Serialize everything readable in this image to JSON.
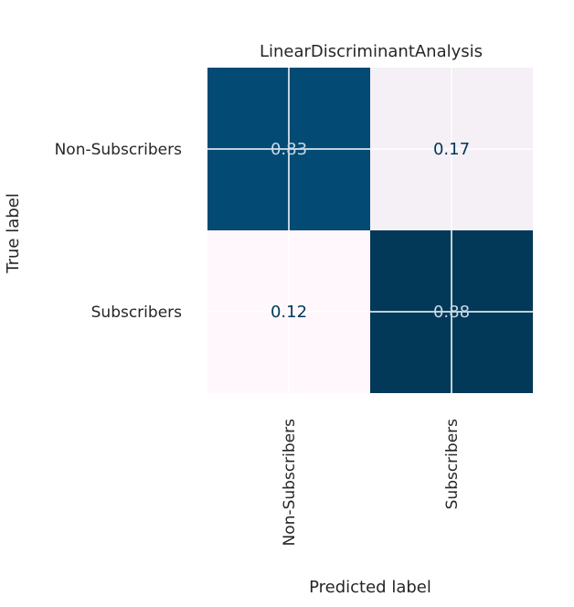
{
  "chart_data": {
    "type": "heatmap",
    "title": "LinearDiscriminantAnalysis",
    "xlabel": "Predicted label",
    "ylabel": "True label",
    "x_categories": [
      "Non-Subscribers",
      "Subscribers"
    ],
    "y_categories": [
      "Non-Subscribers",
      "Subscribers"
    ],
    "values": [
      [
        0.83,
        0.17
      ],
      [
        0.12,
        0.88
      ]
    ],
    "value_labels": [
      [
        "0.83",
        "0.17"
      ],
      [
        "0.12",
        "0.88"
      ]
    ],
    "colormap": "PuBu",
    "grid": true,
    "colors": {
      "cell_low": "#fff7fb",
      "cell_high": "#023858",
      "text_dark": "#023858",
      "text_light": "#c8d8e6",
      "grid": "#ffffff"
    }
  }
}
